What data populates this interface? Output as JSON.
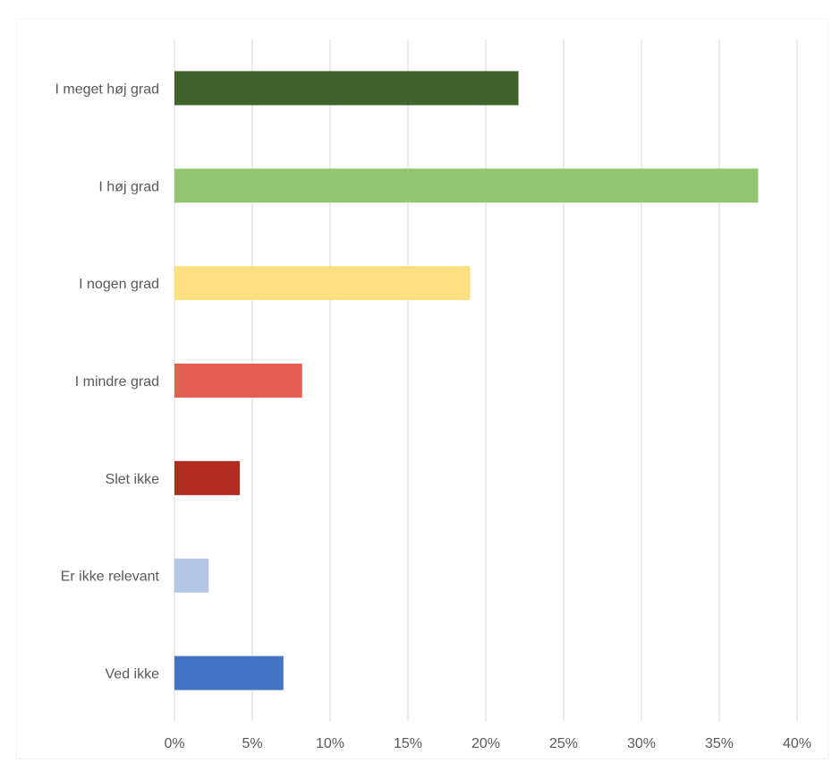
{
  "chart_data": {
    "type": "bar",
    "orientation": "horizontal",
    "categories": [
      "I meget høj grad",
      "I høj grad",
      "I nogen grad",
      "I mindre grad",
      "Slet ikke",
      "Er ikke relevant",
      "Ved ikke"
    ],
    "values": [
      22.1,
      37.5,
      19.0,
      8.2,
      4.2,
      2.2,
      7.0
    ],
    "colors": [
      "#3f6229",
      "#92c570",
      "#ffdf80",
      "#e25f52",
      "#b02c1f",
      "#b5c7e7",
      "#4472c4"
    ],
    "x_ticks": [
      "0%",
      "5%",
      "10%",
      "15%",
      "20%",
      "25%",
      "30%",
      "35%",
      "40%"
    ],
    "xlim": [
      0,
      40
    ],
    "grid": true,
    "legend": false
  }
}
